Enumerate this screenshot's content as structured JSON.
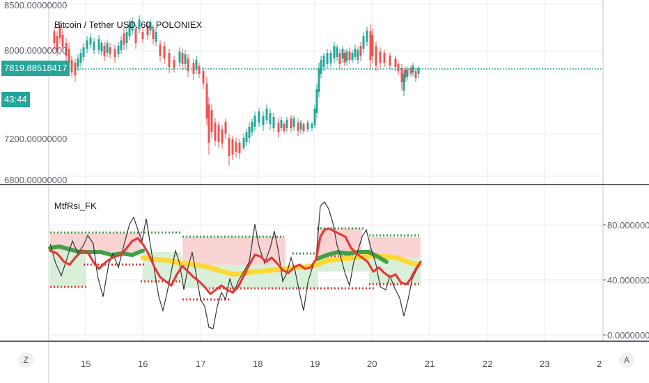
{
  "main_pane": {
    "title": "Bitcoin / Tether USD, 60, POLONIEX",
    "price_axis": [
      "8500.00000000",
      "8000.00000000",
      "7200.00000000",
      "6800.00000000"
    ],
    "current_price": "7819.88518417",
    "countdown": "43:44"
  },
  "indicator_pane": {
    "title": "MtfRsi_FK",
    "scale": [
      "80.00000000",
      "40.00000000",
      "0.00000000"
    ]
  },
  "time_axis": [
    "15",
    "16",
    "17",
    "18",
    "19",
    "20",
    "21",
    "22",
    "23",
    "2"
  ],
  "buttons": {
    "left_label": "Z",
    "right_label": "A"
  },
  "colors": {
    "up": "#26a69a",
    "down": "#ef5350",
    "price_line": "#26a69a",
    "rsi": "#e53935",
    "green_avg": "#43a047",
    "yellow_avg": "#fdd835",
    "upper_zone": "#f9d3d3",
    "lower_zone": "#d9efd9"
  },
  "chart_data": {
    "type": "line",
    "x": [
      "14.3",
      "14.5",
      "14.8",
      "15.0",
      "15.4",
      "15.8",
      "16.1",
      "16.5",
      "16.8",
      "17.0",
      "17.2",
      "17.4",
      "17.7",
      "18.0",
      "18.3",
      "18.6",
      "18.9",
      "19.1",
      "19.3",
      "19.6",
      "19.9",
      "20.1",
      "20.3",
      "20.5",
      "20.8"
    ],
    "series": [
      {
        "values": [
          8250,
          8150,
          8050,
          8000,
          8030,
          8120,
          8150,
          8050,
          7950,
          7520,
          7350,
          7180,
          7120,
          7260,
          7310,
          7330,
          7290,
          7830,
          8020,
          8030,
          8150,
          8050,
          7980,
          7760,
          7820
        ]
      },
      {
        "values": [
          58,
          50,
          40,
          55,
          60,
          58,
          62,
          45,
          40,
          38,
          30,
          32,
          34,
          40,
          55,
          48,
          44,
          70,
          65,
          60,
          62,
          52,
          44,
          40,
          52
        ]
      }
    ]
  }
}
